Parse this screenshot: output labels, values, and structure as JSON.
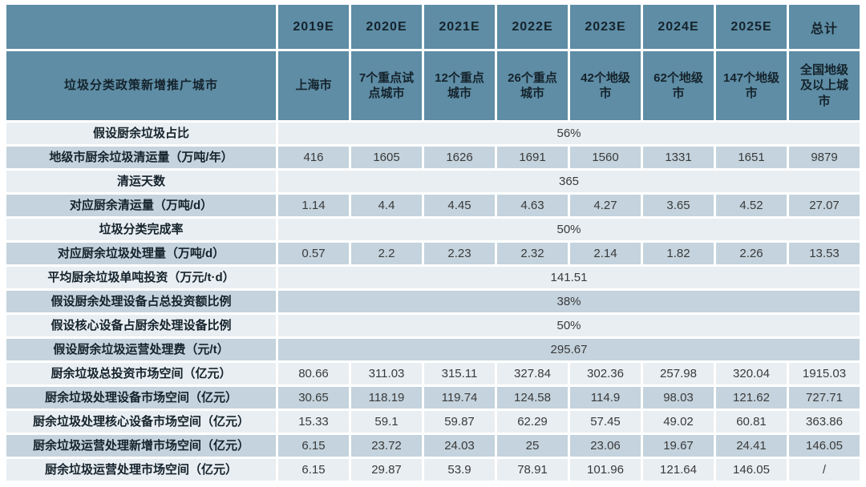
{
  "chart_data": {
    "type": "table",
    "header": {
      "year_row": [
        "",
        "2019E",
        "2020E",
        "2021E",
        "2022E",
        "2023E",
        "2024E",
        "2025E",
        "总计"
      ],
      "city_row": [
        "垃圾分类政策新增推广城市",
        "上海市",
        "7个重点试点城市",
        "12个重点城市",
        "26个重点城市",
        "42个地级市",
        "62个地级市",
        "147个地级市",
        "全国地级及以上城市"
      ]
    },
    "rows": [
      {
        "label": "假设厨余垃圾占比",
        "merged": "56%"
      },
      {
        "label": "地级市厨余垃圾清运量（万吨/年）",
        "values": [
          "416",
          "1605",
          "1626",
          "1691",
          "1560",
          "1331",
          "1651",
          "9879"
        ]
      },
      {
        "label": "清运天数",
        "merged": "365"
      },
      {
        "label": "对应厨余清运量（万吨/d）",
        "values": [
          "1.14",
          "4.4",
          "4.45",
          "4.63",
          "4.27",
          "3.65",
          "4.52",
          "27.07"
        ]
      },
      {
        "label": "垃圾分类完成率",
        "merged": "50%"
      },
      {
        "label": "对应厨余垃圾处理量（万吨/d）",
        "values": [
          "0.57",
          "2.2",
          "2.23",
          "2.32",
          "2.14",
          "1.82",
          "2.26",
          "13.53"
        ]
      },
      {
        "label": "平均厨余垃圾单吨投资（万元/t·d）",
        "merged": "141.51"
      },
      {
        "label": "假设厨余处理设备占总投资额比例",
        "merged": "38%"
      },
      {
        "label": "假设核心设备占厨余处理设备比例",
        "merged": "50%"
      },
      {
        "label": "假设厨余垃圾运营处理费（元/t）",
        "merged": "295.67"
      },
      {
        "label": "厨余垃圾总投资市场空间（亿元）",
        "values": [
          "80.66",
          "311.03",
          "315.11",
          "327.84",
          "302.36",
          "257.98",
          "320.04",
          "1915.03"
        ]
      },
      {
        "label": "厨余垃圾处理设备市场空间（亿元）",
        "values": [
          "30.65",
          "118.19",
          "119.74",
          "124.58",
          "114.9",
          "98.03",
          "121.62",
          "727.71"
        ]
      },
      {
        "label": "厨余垃圾处理核心设备市场空间（亿元）",
        "values": [
          "15.33",
          "59.1",
          "59.87",
          "62.29",
          "57.45",
          "49.02",
          "60.81",
          "363.86"
        ]
      },
      {
        "label": "厨余垃圾运营处理新增市场空间（亿元）",
        "values": [
          "6.15",
          "23.72",
          "24.03",
          "25",
          "23.06",
          "19.67",
          "24.41",
          "146.05"
        ]
      },
      {
        "label": "厨余垃圾运营处理市场空间（亿元）",
        "values": [
          "6.15",
          "29.87",
          "53.9",
          "78.91",
          "101.96",
          "121.64",
          "146.05",
          "/"
        ]
      }
    ]
  },
  "colors": {
    "header_bg": "#5E8DA5",
    "row_light": "#E9EEF2",
    "row_dark": "#C4D3DD",
    "grid": "#FFFFFF",
    "header_text": "#15232C",
    "body_text": "#3A3A3A"
  }
}
